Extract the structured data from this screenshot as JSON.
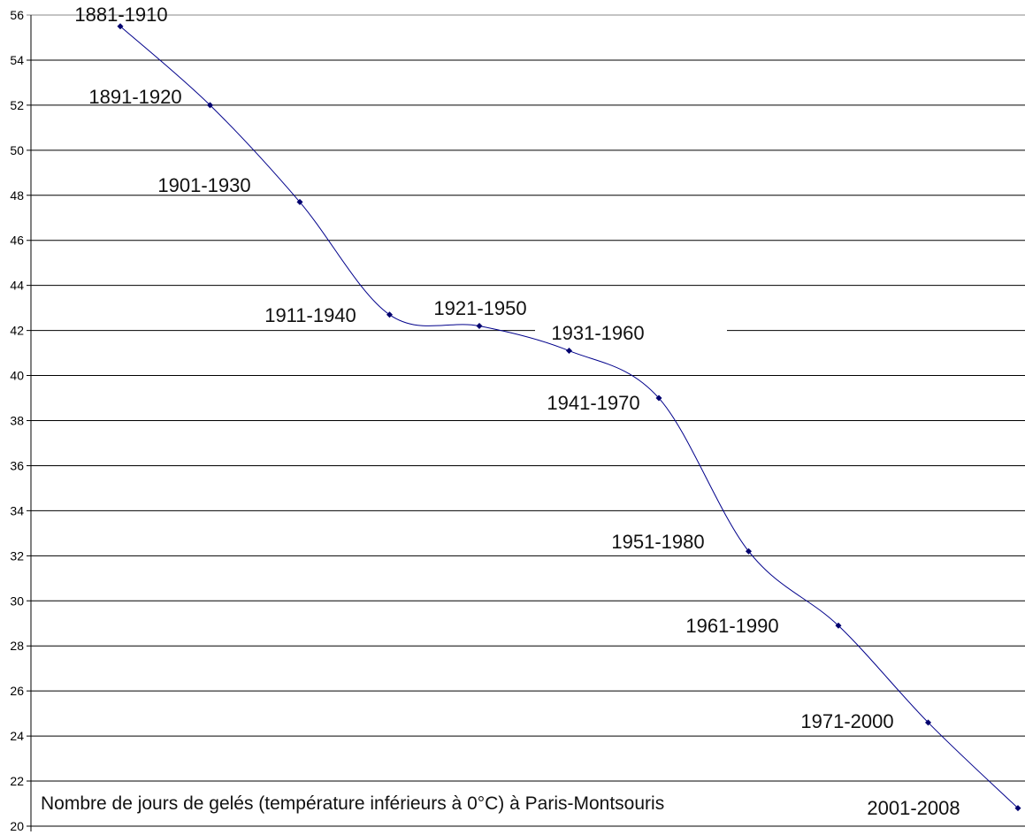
{
  "chart_data": {
    "type": "line",
    "title": "Nombre de jours de gelés (température inférieurs à 0°C)  à Paris-Montsouris",
    "xlabel": "",
    "ylabel": "",
    "categories": [
      "1881-1910",
      "1891-1920",
      "1901-1930",
      "1911-1940",
      "1921-1950",
      "1931-1960",
      "1941-1970",
      "1951-1980",
      "1961-1990",
      "1971-2000",
      "2001-2008"
    ],
    "values": [
      55.5,
      52.0,
      47.7,
      42.7,
      42.2,
      41.1,
      39.0,
      32.2,
      28.9,
      24.6,
      20.8
    ],
    "ylim": [
      20,
      56
    ],
    "yticks": [
      20,
      22,
      24,
      26,
      28,
      30,
      32,
      34,
      36,
      38,
      40,
      42,
      44,
      46,
      48,
      50,
      52,
      54,
      56
    ],
    "grid": true,
    "smoothed": true,
    "line_color": "#00008b",
    "marker_color": "#00006e"
  }
}
